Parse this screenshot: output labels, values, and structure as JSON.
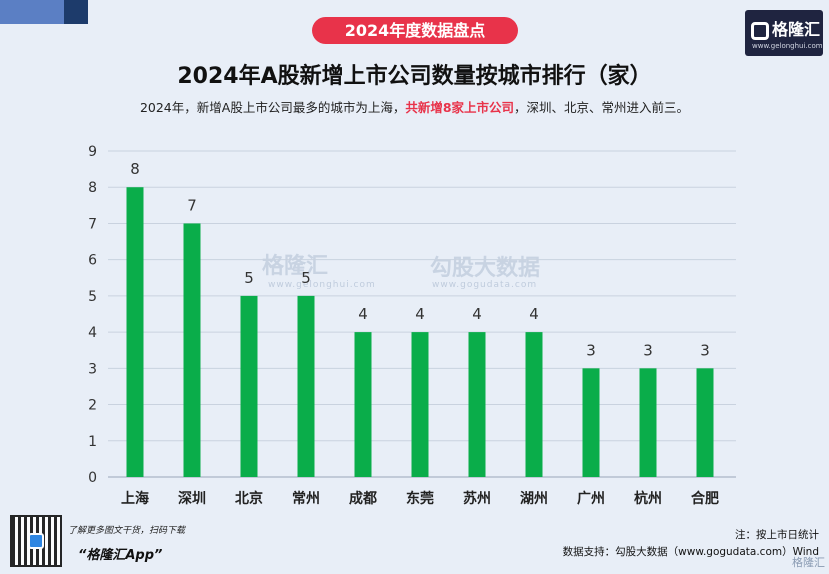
{
  "header": {
    "badge": "2024年度数据盘点",
    "logo_name": "格隆汇",
    "logo_url": "www.gelonghui.com",
    "title": "2024年A股新增上市公司数量按城市排行（家）",
    "subtitle_pre": "2024年，新增A股上市公司最多的城市为上海，",
    "subtitle_highlight": "共新增8家上市公司",
    "subtitle_post": "，深圳、北京、常州进入前三。"
  },
  "watermark": {
    "left_name": "格隆汇",
    "left_url": "www.gelonghui.com",
    "right_name": "勾股大数据",
    "right_url": "www.gogudata.com"
  },
  "footer": {
    "tip": "了解更多图文干货，扫码下载",
    "app": "“格隆汇App”",
    "note": "注：按上市日统计",
    "source": "数据支持：勾股大数据（www.gogudata.com）Wind",
    "corner": "格隆汇"
  },
  "colors": {
    "bar": "#0aad4a",
    "accent": "#e8334a",
    "grid": "#c9d2df"
  },
  "chart_data": {
    "type": "bar",
    "title": "2024年A股新增上市公司数量按城市排行（家）",
    "categories": [
      "上海",
      "深圳",
      "北京",
      "常州",
      "成都",
      "东莞",
      "苏州",
      "湖州",
      "广州",
      "杭州",
      "合肥"
    ],
    "values": [
      8,
      7,
      5,
      5,
      4,
      4,
      4,
      4,
      3,
      3,
      3
    ],
    "yticks": [
      "0",
      "1",
      "2",
      "3",
      "4",
      "5",
      "6",
      "7",
      "8",
      "9"
    ],
    "ylim": [
      0,
      9
    ],
    "grid": true,
    "legend": "none"
  }
}
